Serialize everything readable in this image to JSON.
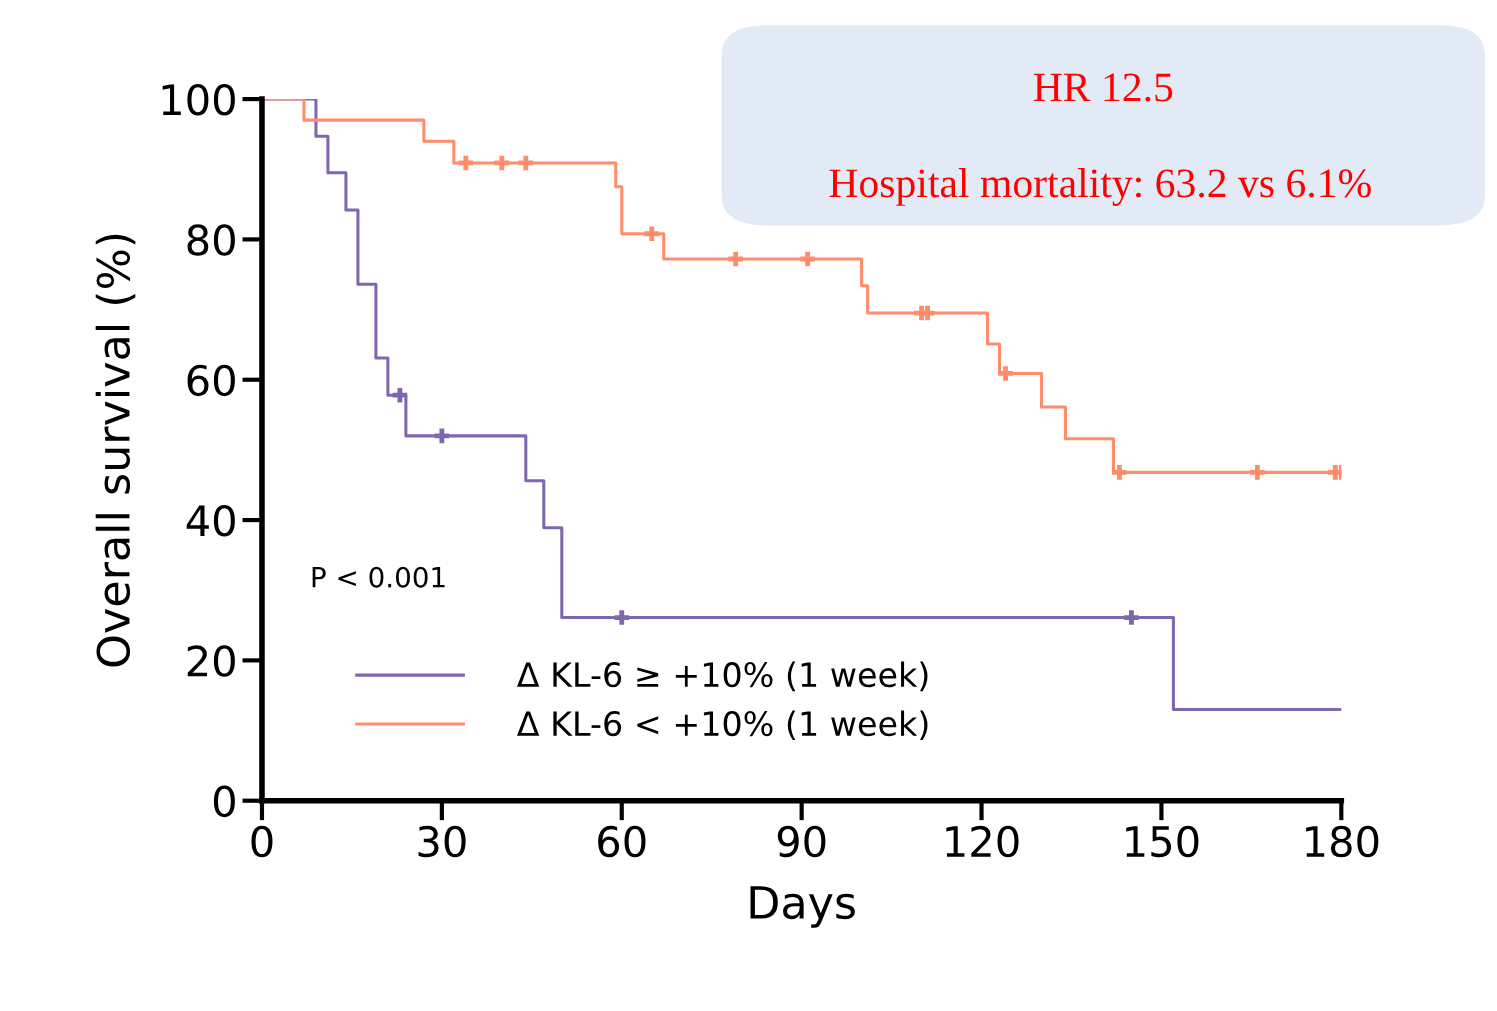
{
  "chart_data": {
    "type": "step",
    "xlabel": "Days",
    "ylabel": "Overall survival (%)",
    "xlim": [
      0,
      180
    ],
    "xticks": [
      0,
      30,
      60,
      90,
      120,
      150,
      180
    ],
    "ylim": [
      0,
      100
    ],
    "yticks": [
      0,
      20,
      40,
      60,
      80,
      100
    ],
    "grid": false,
    "legend": "bottom left",
    "annotations": [
      "HR 12.5",
      "Hospital mortality: 63.2 vs 6.1%",
      "P < 0.001"
    ],
    "series": [
      {
        "name": "Δ KL-6 ≥ +10% (1 week)",
        "color": "#7f67b0",
        "x": [
          0,
          9,
          11,
          14,
          16,
          19,
          21,
          24,
          44,
          47,
          50,
          152,
          180
        ],
        "values": [
          100,
          94.7,
          89.5,
          84.2,
          73.6,
          63.1,
          57.8,
          52,
          45.6,
          38.9,
          26.1,
          13,
          13
        ]
      },
      {
        "name": "Δ KL-6 < +10% (1 week)",
        "color": "#ff8c6a",
        "x": [
          0,
          7,
          27,
          32,
          59,
          60,
          67,
          100,
          101,
          121,
          123,
          130,
          134,
          142,
          180
        ],
        "values": [
          100,
          97,
          94,
          90.9,
          87.5,
          80.8,
          77.2,
          73.4,
          69.5,
          65.1,
          60.9,
          56.1,
          51.6,
          46.8,
          46.8
        ]
      },
      {
        "type": "scatter",
        "marker": "cross",
        "color": "#7f67b0",
        "x": [
          23,
          30,
          60,
          145
        ],
        "values": [
          57.8,
          52,
          26.1,
          26.1
        ]
      },
      {
        "type": "scatter",
        "marker": "cross",
        "color": "#ff8c6a",
        "x": [
          34,
          40,
          44,
          65,
          79,
          91,
          110,
          111,
          124,
          143,
          166,
          179,
          180
        ],
        "values": [
          90.9,
          90.9,
          90.9,
          80.8,
          77.2,
          77.2,
          69.5,
          69.5,
          60.9,
          46.8,
          46.8,
          46.8,
          46.8
        ]
      }
    ]
  }
}
